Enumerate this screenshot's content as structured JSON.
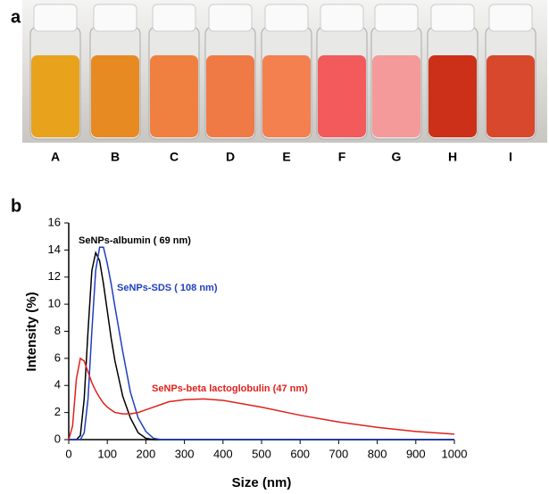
{
  "panel_a": {
    "label": "a",
    "vials": [
      "A",
      "B",
      "C",
      "D",
      "E",
      "F",
      "G",
      "H",
      "I"
    ]
  },
  "chart_data": {
    "type": "line",
    "panel_label": "b",
    "x_label": "Size (nm)",
    "y_label": "Intensity (%)",
    "x": [
      0,
      10,
      20,
      30,
      40,
      50,
      60,
      70,
      80,
      90,
      100,
      110,
      120,
      140,
      160,
      180,
      200,
      220,
      240,
      260,
      300,
      350,
      400,
      500,
      600,
      700,
      800,
      900,
      1000
    ],
    "series": [
      {
        "name": "SeNPs-albumin ( 69 nm)",
        "color": "#000000",
        "values": [
          0,
          0,
          0,
          0.3,
          3,
          8,
          12.5,
          13.8,
          13.2,
          11.5,
          9.5,
          7.5,
          5.8,
          3.2,
          1.6,
          0.5,
          0.1,
          0,
          0,
          0,
          0,
          0,
          0,
          0,
          0,
          0,
          0,
          0,
          0
        ]
      },
      {
        "name": "SeNPs-SDS ( 108 nm)",
        "color": "#1f3fbf",
        "values": [
          0,
          0,
          0,
          0,
          0.5,
          3,
          8,
          12.5,
          14.2,
          14.2,
          13,
          11.5,
          9.8,
          6.5,
          3.5,
          1.6,
          0.6,
          0.1,
          0,
          0,
          0,
          0,
          0,
          0,
          0,
          0,
          0,
          0,
          0
        ]
      },
      {
        "name": "SeNPs-beta lactoglobulin (47 nm)",
        "color": "#e0201a",
        "values": [
          0,
          1,
          4.5,
          6,
          5.8,
          5,
          4.2,
          3.6,
          3.1,
          2.7,
          2.4,
          2.2,
          2.0,
          1.9,
          1.9,
          2.0,
          2.2,
          2.4,
          2.6,
          2.8,
          2.95,
          3.0,
          2.9,
          2.4,
          1.8,
          1.3,
          0.9,
          0.6,
          0.4
        ]
      }
    ],
    "xlim": [
      0,
      1000
    ],
    "ylim": [
      0,
      16
    ],
    "xticks": [
      0,
      100,
      200,
      300,
      400,
      500,
      600,
      700,
      800,
      900,
      1000
    ],
    "yticks": [
      0,
      2,
      4,
      6,
      8,
      10,
      12,
      14,
      16
    ]
  }
}
